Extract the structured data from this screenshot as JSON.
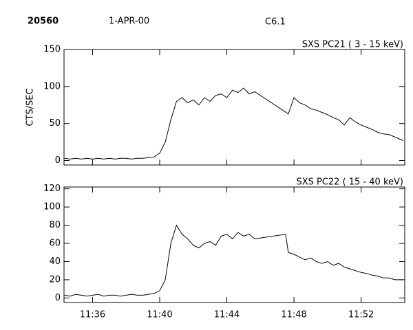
{
  "header": {
    "id": "20560",
    "date": "1-APR-00",
    "class": "C6.1"
  },
  "chart_data": [
    {
      "type": "line",
      "title": "SXS PC21  (  3 - 15 keV)",
      "ylabel": "CTS/SEC",
      "color": "#000000",
      "xlim": [
        "11:34:18",
        "11:54:36"
      ],
      "ylim": [
        -6,
        150
      ],
      "yticks": [
        0,
        50,
        100,
        150
      ],
      "x": [
        "11:34:20",
        "11:34:40",
        "11:35:00",
        "11:35:20",
        "11:35:40",
        "11:36:00",
        "11:36:20",
        "11:36:40",
        "11:37:00",
        "11:37:20",
        "11:37:40",
        "11:38:00",
        "11:38:20",
        "11:38:40",
        "11:39:00",
        "11:39:20",
        "11:39:40",
        "11:40:00",
        "11:40:20",
        "11:40:40",
        "11:41:00",
        "11:41:20",
        "11:41:40",
        "11:42:00",
        "11:42:20",
        "11:42:40",
        "11:43:00",
        "11:43:20",
        "11:43:40",
        "11:44:00",
        "11:44:20",
        "11:44:40",
        "11:45:00",
        "11:45:20",
        "11:45:40",
        "11:47:40",
        "11:48:00",
        "11:48:20",
        "11:48:40",
        "11:49:00",
        "11:49:20",
        "11:49:40",
        "11:50:00",
        "11:50:20",
        "11:50:40",
        "11:51:00",
        "11:51:20",
        "11:51:40",
        "11:52:00",
        "11:52:20",
        "11:52:40",
        "11:53:00",
        "11:53:20",
        "11:53:40",
        "11:54:00",
        "11:54:30"
      ],
      "values": [
        3,
        2,
        3,
        2,
        3,
        2,
        3,
        2,
        3,
        2,
        3,
        3,
        2,
        3,
        3,
        4,
        5,
        10,
        25,
        55,
        80,
        85,
        78,
        82,
        75,
        85,
        80,
        88,
        90,
        85,
        95,
        92,
        98,
        90,
        93,
        63,
        85,
        78,
        75,
        70,
        68,
        65,
        62,
        58,
        55,
        48,
        58,
        52,
        48,
        45,
        42,
        38,
        36,
        35,
        32,
        27
      ]
    },
    {
      "type": "line",
      "title": "SXS PC22  ( 15 - 40 keV)",
      "color": "#000000",
      "xlim": [
        "11:34:18",
        "11:54:36"
      ],
      "ylim": [
        -5,
        122
      ],
      "yticks": [
        0,
        20,
        40,
        60,
        80,
        100,
        120
      ],
      "xticks": [
        "11:36",
        "11:40",
        "11:44",
        "11:48",
        "11:52"
      ],
      "x": [
        "11:34:20",
        "11:34:40",
        "11:35:00",
        "11:35:20",
        "11:35:40",
        "11:36:00",
        "11:36:20",
        "11:36:40",
        "11:37:00",
        "11:37:20",
        "11:37:40",
        "11:38:00",
        "11:38:20",
        "11:38:40",
        "11:39:00",
        "11:39:20",
        "11:39:40",
        "11:40:00",
        "11:40:20",
        "11:40:40",
        "11:41:00",
        "11:41:20",
        "11:41:40",
        "11:42:00",
        "11:42:20",
        "11:42:40",
        "11:43:00",
        "11:43:20",
        "11:43:40",
        "11:44:00",
        "11:44:20",
        "11:44:40",
        "11:45:00",
        "11:45:20",
        "11:45:40",
        "11:47:30",
        "11:47:40",
        "11:48:00",
        "11:48:20",
        "11:48:40",
        "11:49:00",
        "11:49:20",
        "11:49:40",
        "11:50:00",
        "11:50:20",
        "11:50:40",
        "11:51:00",
        "11:51:20",
        "11:51:40",
        "11:52:00",
        "11:52:20",
        "11:52:40",
        "11:53:00",
        "11:53:20",
        "11:53:40",
        "11:54:00",
        "11:54:30"
      ],
      "values": [
        3,
        2,
        4,
        3,
        2,
        3,
        4,
        2,
        3,
        3,
        2,
        3,
        4,
        3,
        3,
        4,
        5,
        8,
        20,
        60,
        80,
        70,
        65,
        58,
        55,
        60,
        62,
        58,
        68,
        70,
        65,
        72,
        68,
        70,
        65,
        70,
        50,
        48,
        45,
        42,
        44,
        40,
        38,
        40,
        36,
        38,
        34,
        32,
        30,
        28,
        27,
        25,
        24,
        22,
        22,
        20,
        20
      ]
    }
  ]
}
